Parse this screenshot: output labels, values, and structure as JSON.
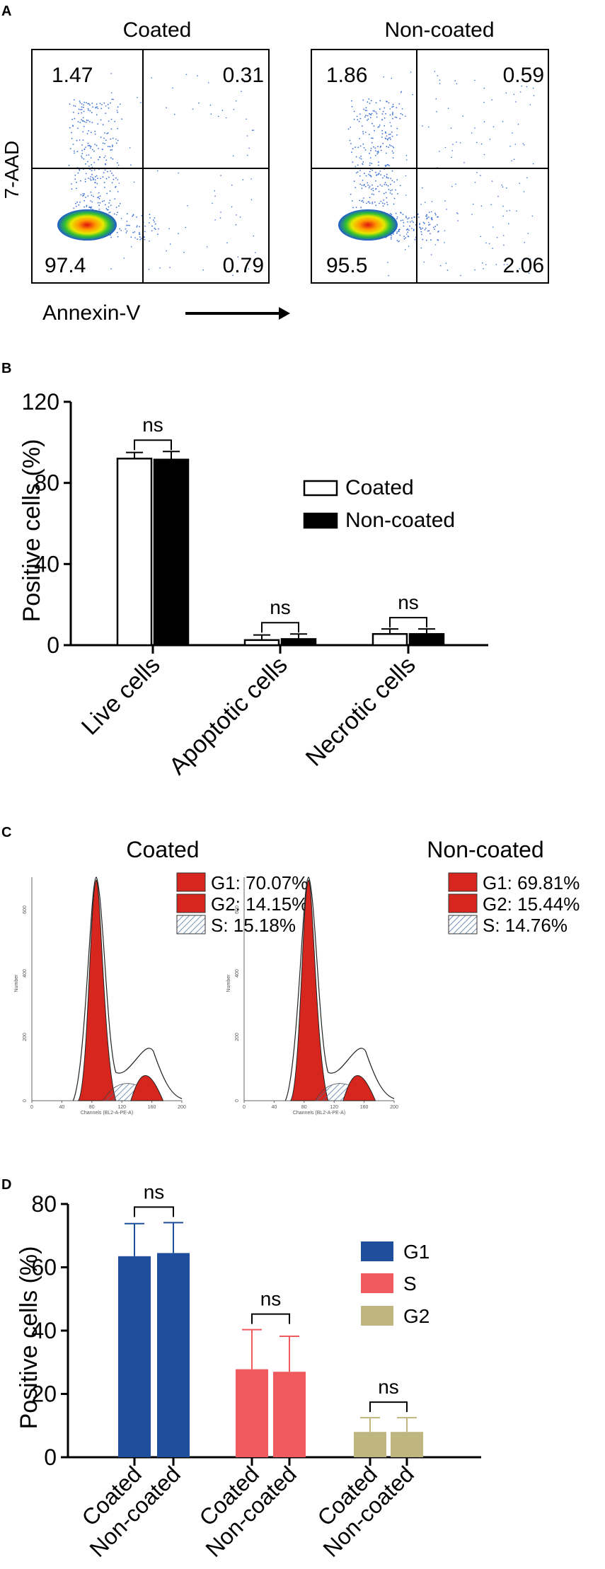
{
  "colors": {
    "g1_blue": "#1f4e9c",
    "s_red": "#ef5a5f",
    "g2_khaki": "#bfb57e",
    "histo_red": "#d7261e",
    "black": "#000000"
  },
  "panelA": {
    "label": "A",
    "y_axis_label": "7-AAD",
    "x_axis_label": "Annexin-V",
    "plots": [
      {
        "title": "Coated",
        "q_tl": "1.47",
        "q_tr": "0.31",
        "q_bl": "97.4",
        "q_br": "0.79"
      },
      {
        "title": "Non-coated",
        "q_tl": "1.86",
        "q_tr": "0.59",
        "q_bl": "95.5",
        "q_br": "2.06"
      }
    ]
  },
  "panelC": {
    "label": "C",
    "x_axis_label": "Channels (BL2-A-PE-A)",
    "y_axis_label": "Number",
    "x_ticks": [
      "0",
      "40",
      "80",
      "120",
      "160",
      "200"
    ],
    "y_ticks": [
      "0",
      "200",
      "400",
      "600"
    ],
    "plots": [
      {
        "title": "Coated",
        "legend": [
          "G1: 70.07%",
          "G2: 14.15%",
          "S: 15.18%"
        ]
      },
      {
        "title": "Non-coated",
        "legend": [
          "G1: 69.81%",
          "G2: 15.44%",
          "S: 14.76%"
        ]
      }
    ]
  },
  "chart_data": [
    {
      "type": "bar",
      "panel": "B",
      "title": "",
      "xlabel": "",
      "ylabel": "Positive cells (%)",
      "ylim": [
        0,
        120
      ],
      "yticks": [
        0,
        40,
        80,
        120
      ],
      "categories": [
        "Live cells",
        "Apoptotic cells",
        "Necrotic cells"
      ],
      "series": [
        {
          "name": "Coated",
          "values": [
            92,
            2.5,
            5.5
          ],
          "errors": [
            3,
            2.5,
            2.5
          ]
        },
        {
          "name": "Non-coated",
          "values": [
            91.5,
            3,
            5.5
          ],
          "errors": [
            4,
            2.5,
            2.5
          ]
        }
      ],
      "annotations": [
        "ns",
        "ns",
        "ns"
      ],
      "legend_position": "right"
    },
    {
      "type": "bar",
      "panel": "D",
      "title": "",
      "xlabel": "",
      "ylabel": "Positive cells (%)",
      "ylim": [
        0,
        80
      ],
      "yticks": [
        0,
        20,
        40,
        60,
        80
      ],
      "groups": [
        "G1",
        "S",
        "G2"
      ],
      "tick_labels": [
        "Coated",
        "Non-coated",
        "Coated",
        "Non-coated",
        "Coated",
        "Non-coated"
      ],
      "values": [
        63.5,
        64.5,
        27.8,
        27,
        8,
        8
      ],
      "errors": [
        10.3,
        9.6,
        12.5,
        11.2,
        4.5,
        4.5
      ],
      "annotations": [
        "ns",
        "ns",
        "ns"
      ],
      "legend_position": "right"
    }
  ]
}
